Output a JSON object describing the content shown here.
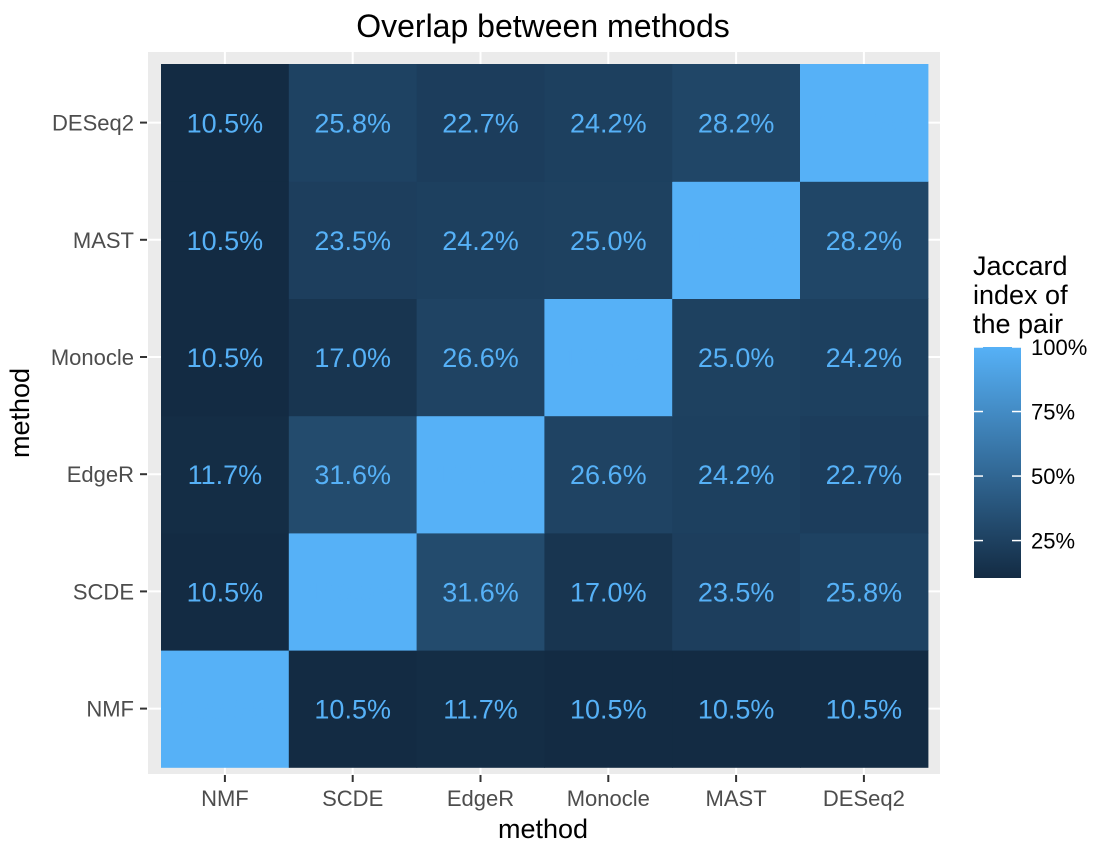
{
  "chart_data": {
    "type": "heatmap",
    "title": "Overlap between methods",
    "xlabel": "method",
    "ylabel": "method",
    "x_categories": [
      "NMF",
      "SCDE",
      "EdgeR",
      "Monocle",
      "MAST",
      "DESeq2"
    ],
    "y_categories": [
      "NMF",
      "SCDE",
      "EdgeR",
      "Monocle",
      "MAST",
      "DESeq2"
    ],
    "values": [
      [
        100,
        10.5,
        11.7,
        10.5,
        10.5,
        10.5
      ],
      [
        10.5,
        100,
        31.6,
        17.0,
        23.5,
        25.8
      ],
      [
        11.7,
        31.6,
        100,
        26.6,
        24.2,
        22.7
      ],
      [
        10.5,
        17.0,
        26.6,
        100,
        25.0,
        24.2
      ],
      [
        10.5,
        23.5,
        24.2,
        25.0,
        100,
        28.2
      ],
      [
        10.5,
        25.8,
        22.7,
        24.2,
        28.2,
        100
      ]
    ],
    "value_suffix": "%",
    "label_decimals": 1,
    "legend": {
      "title_lines": [
        "Jaccard",
        "index of",
        "the pair"
      ],
      "ticks": [
        {
          "value": 100,
          "label": "100%"
        },
        {
          "value": 75,
          "label": "75%"
        },
        {
          "value": 50,
          "label": "50%"
        },
        {
          "value": 25,
          "label": "25%"
        }
      ],
      "position": "right"
    },
    "color_scale": {
      "low": "#132b43",
      "high": "#56b1f7",
      "domain": [
        10.5,
        100
      ]
    },
    "label_color": "#56b1f7",
    "panel_background": "#ebebeb",
    "grid": true
  }
}
